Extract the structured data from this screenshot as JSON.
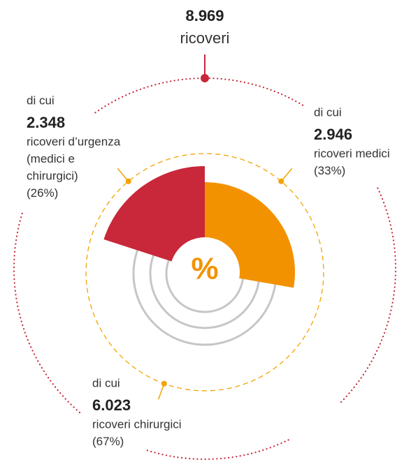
{
  "total": {
    "value": "8.969",
    "label": "ricoveri"
  },
  "groups": [
    {
      "intro": "di cui",
      "value": "2.348",
      "lines": [
        "ricoveri d’urgenza",
        "(medici e",
        "chirurgici)",
        "(26%)"
      ]
    },
    {
      "intro": "di cui",
      "value": "2.946",
      "lines": [
        "ricoveri medici",
        "(33%)"
      ]
    },
    {
      "intro": "di cui",
      "value": "6.023",
      "lines": [
        "ricoveri chirurgici",
        "(67%)"
      ]
    }
  ],
  "center_symbol": "%"
}
